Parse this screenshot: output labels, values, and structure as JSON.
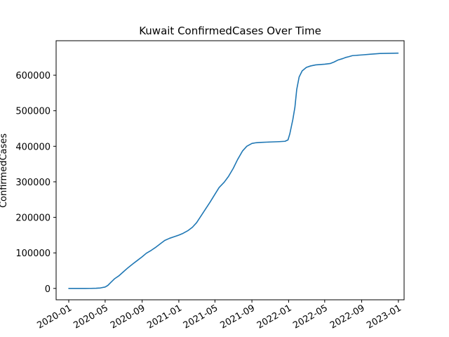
{
  "chart_data": {
    "type": "line",
    "title": "Kuwait  ConfirmedCases Over Time",
    "xlabel": "",
    "ylabel": "ConfirmedCases",
    "x_tick_labels": [
      "2020-01",
      "2020-05",
      "2020-09",
      "2021-01",
      "2021-05",
      "2021-09",
      "2022-01",
      "2022-05",
      "2022-09",
      "2023-01"
    ],
    "y_ticks": [
      0,
      100000,
      200000,
      300000,
      400000,
      500000,
      600000
    ],
    "y_tick_labels": [
      "0",
      "100000",
      "200000",
      "300000",
      "400000",
      "500000",
      "600000"
    ],
    "xlim": [
      "2019-11-20",
      "2023-01-20"
    ],
    "ylim": [
      -32000,
      697000
    ],
    "grid": false,
    "color": "#1f77b4",
    "series": [
      {
        "name": "",
        "points": [
          [
            "2020-01-01",
            0
          ],
          [
            "2020-02-24",
            0
          ],
          [
            "2020-03-15",
            120
          ],
          [
            "2020-04-01",
            400
          ],
          [
            "2020-04-15",
            1300
          ],
          [
            "2020-05-01",
            4000
          ],
          [
            "2020-05-10",
            8500
          ],
          [
            "2020-05-20",
            17000
          ],
          [
            "2020-06-01",
            27000
          ],
          [
            "2020-06-15",
            35000
          ],
          [
            "2020-07-01",
            47000
          ],
          [
            "2020-07-15",
            57500
          ],
          [
            "2020-08-01",
            69000
          ],
          [
            "2020-08-15",
            78000
          ],
          [
            "2020-09-01",
            89000
          ],
          [
            "2020-09-15",
            99000
          ],
          [
            "2020-10-01",
            107000
          ],
          [
            "2020-10-15",
            115000
          ],
          [
            "2020-11-01",
            126000
          ],
          [
            "2020-11-15",
            135000
          ],
          [
            "2020-12-01",
            141000
          ],
          [
            "2020-12-15",
            145000
          ],
          [
            "2021-01-01",
            150000
          ],
          [
            "2021-01-15",
            155000
          ],
          [
            "2021-02-01",
            163000
          ],
          [
            "2021-02-15",
            172000
          ],
          [
            "2021-03-01",
            185000
          ],
          [
            "2021-03-15",
            203000
          ],
          [
            "2021-04-01",
            225000
          ],
          [
            "2021-04-15",
            243000
          ],
          [
            "2021-05-01",
            265000
          ],
          [
            "2021-05-15",
            284000
          ],
          [
            "2021-06-01",
            299000
          ],
          [
            "2021-06-15",
            315000
          ],
          [
            "2021-07-01",
            338000
          ],
          [
            "2021-07-15",
            362000
          ],
          [
            "2021-08-01",
            387000
          ],
          [
            "2021-08-15",
            400000
          ],
          [
            "2021-09-01",
            408000
          ],
          [
            "2021-09-15",
            410000
          ],
          [
            "2021-10-01",
            411000
          ],
          [
            "2021-11-01",
            412000
          ],
          [
            "2021-12-01",
            413000
          ],
          [
            "2021-12-20",
            414000
          ],
          [
            "2021-12-30",
            418000
          ],
          [
            "2022-01-05",
            435000
          ],
          [
            "2022-01-15",
            475000
          ],
          [
            "2022-01-22",
            510000
          ],
          [
            "2022-01-28",
            560000
          ],
          [
            "2022-02-05",
            595000
          ],
          [
            "2022-02-15",
            612000
          ],
          [
            "2022-03-01",
            622000
          ],
          [
            "2022-03-15",
            626000
          ],
          [
            "2022-04-01",
            629000
          ],
          [
            "2022-05-01",
            631000
          ],
          [
            "2022-05-20",
            633000
          ],
          [
            "2022-06-01",
            637000
          ],
          [
            "2022-06-15",
            643000
          ],
          [
            "2022-07-01",
            647000
          ],
          [
            "2022-07-10",
            650000
          ],
          [
            "2022-07-20",
            652000
          ],
          [
            "2022-08-01",
            655000
          ],
          [
            "2022-09-01",
            657000
          ],
          [
            "2022-10-01",
            659000
          ],
          [
            "2022-11-01",
            661000
          ],
          [
            "2022-12-31",
            662000
          ]
        ]
      }
    ]
  }
}
